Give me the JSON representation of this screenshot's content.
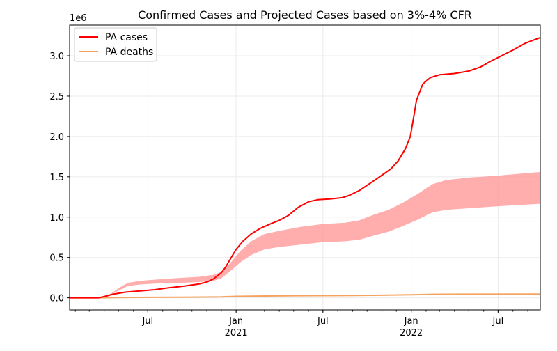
{
  "chart_data": {
    "type": "line",
    "title": "Confirmed Cases and Projected Cases based on 3%-4% CFR",
    "y_multiplier_label": "1e6",
    "xlabel": "",
    "ylabel": "",
    "x_range": [
      "2020-01-20",
      "2022-09-27"
    ],
    "ylim": [
      -150000,
      3380000
    ],
    "y_ticks": [
      0.0,
      0.5,
      1.0,
      1.5,
      2.0,
      2.5,
      3.0
    ],
    "y_tick_labels": [
      "0.0",
      "0.5",
      "1.0",
      "1.5",
      "2.0",
      "2.5",
      "3.0"
    ],
    "x_ticks": [
      {
        "date": "2020-07-01",
        "label": "Jul",
        "sublabel": ""
      },
      {
        "date": "2021-01-01",
        "label": "Jan",
        "sublabel": "2021"
      },
      {
        "date": "2021-07-01",
        "label": "Jul",
        "sublabel": ""
      },
      {
        "date": "2022-01-01",
        "label": "Jan",
        "sublabel": "2022"
      },
      {
        "date": "2022-07-01",
        "label": "Jul",
        "sublabel": ""
      }
    ],
    "grid": true,
    "legend_position": "top-left",
    "series": [
      {
        "name": "PA cases",
        "color": "#ff0000",
        "points": [
          [
            "2020-01-20",
            0
          ],
          [
            "2020-03-01",
            0
          ],
          [
            "2020-03-20",
            0
          ],
          [
            "2020-04-01",
            15000
          ],
          [
            "2020-04-20",
            45000
          ],
          [
            "2020-05-15",
            70000
          ],
          [
            "2020-06-15",
            85000
          ],
          [
            "2020-07-15",
            100000
          ],
          [
            "2020-08-15",
            125000
          ],
          [
            "2020-09-15",
            145000
          ],
          [
            "2020-10-15",
            170000
          ],
          [
            "2020-11-01",
            195000
          ],
          [
            "2020-11-15",
            235000
          ],
          [
            "2020-12-01",
            310000
          ],
          [
            "2020-12-10",
            380000
          ],
          [
            "2020-12-20",
            480000
          ],
          [
            "2021-01-01",
            600000
          ],
          [
            "2021-01-15",
            700000
          ],
          [
            "2021-02-01",
            790000
          ],
          [
            "2021-02-20",
            860000
          ],
          [
            "2021-03-15",
            920000
          ],
          [
            "2021-04-01",
            960000
          ],
          [
            "2021-04-20",
            1020000
          ],
          [
            "2021-05-10",
            1120000
          ],
          [
            "2021-06-01",
            1190000
          ],
          [
            "2021-06-20",
            1215000
          ],
          [
            "2021-07-15",
            1225000
          ],
          [
            "2021-08-10",
            1240000
          ],
          [
            "2021-08-25",
            1270000
          ],
          [
            "2021-09-15",
            1330000
          ],
          [
            "2021-10-15",
            1450000
          ],
          [
            "2021-11-01",
            1520000
          ],
          [
            "2021-11-20",
            1600000
          ],
          [
            "2021-12-05",
            1700000
          ],
          [
            "2021-12-20",
            1850000
          ],
          [
            "2021-12-30",
            2000000
          ],
          [
            "2022-01-05",
            2200000
          ],
          [
            "2022-01-12",
            2450000
          ],
          [
            "2022-01-25",
            2650000
          ],
          [
            "2022-02-10",
            2730000
          ],
          [
            "2022-03-01",
            2765000
          ],
          [
            "2022-04-01",
            2780000
          ],
          [
            "2022-05-01",
            2810000
          ],
          [
            "2022-05-25",
            2860000
          ],
          [
            "2022-06-15",
            2930000
          ],
          [
            "2022-07-05",
            2990000
          ],
          [
            "2022-08-01",
            3070000
          ],
          [
            "2022-08-25",
            3150000
          ],
          [
            "2022-09-15",
            3200000
          ],
          [
            "2022-09-27",
            3225000
          ]
        ]
      },
      {
        "name": "PA deaths",
        "color": "#f4a460",
        "points": [
          [
            "2020-01-20",
            0
          ],
          [
            "2020-03-20",
            0
          ],
          [
            "2020-05-01",
            3000
          ],
          [
            "2020-07-01",
            6500
          ],
          [
            "2020-10-01",
            8500
          ],
          [
            "2020-12-01",
            12000
          ],
          [
            "2021-01-01",
            18000
          ],
          [
            "2021-02-15",
            22000
          ],
          [
            "2021-05-01",
            26000
          ],
          [
            "2021-08-01",
            28000
          ],
          [
            "2021-11-01",
            32000
          ],
          [
            "2022-01-01",
            38000
          ],
          [
            "2022-02-15",
            43000
          ],
          [
            "2022-05-01",
            45000
          ],
          [
            "2022-09-27",
            47000
          ]
        ]
      }
    ],
    "band": {
      "name": "",
      "color": "#ff9999",
      "points": [
        [
          "2020-01-20",
          0,
          0
        ],
        [
          "2020-03-20",
          0,
          0
        ],
        [
          "2020-04-15",
          40000,
          50000
        ],
        [
          "2020-05-01",
          90000,
          120000
        ],
        [
          "2020-05-20",
          145000,
          185000
        ],
        [
          "2020-06-15",
          165000,
          210000
        ],
        [
          "2020-07-15",
          175000,
          225000
        ],
        [
          "2020-09-01",
          185000,
          245000
        ],
        [
          "2020-10-15",
          195000,
          260000
        ],
        [
          "2020-11-15",
          210000,
          285000
        ],
        [
          "2020-12-01",
          240000,
          320000
        ],
        [
          "2020-12-20",
          330000,
          430000
        ],
        [
          "2021-01-10",
          440000,
          580000
        ],
        [
          "2021-02-01",
          530000,
          700000
        ],
        [
          "2021-03-01",
          600000,
          790000
        ],
        [
          "2021-04-01",
          630000,
          830000
        ],
        [
          "2021-05-15",
          660000,
          880000
        ],
        [
          "2021-07-01",
          690000,
          915000
        ],
        [
          "2021-08-15",
          700000,
          930000
        ],
        [
          "2021-09-15",
          720000,
          960000
        ],
        [
          "2021-10-15",
          770000,
          1030000
        ],
        [
          "2021-11-15",
          820000,
          1090000
        ],
        [
          "2021-12-15",
          890000,
          1180000
        ],
        [
          "2022-01-15",
          970000,
          1290000
        ],
        [
          "2022-02-15",
          1060000,
          1410000
        ],
        [
          "2022-03-15",
          1090000,
          1460000
        ],
        [
          "2022-05-01",
          1110000,
          1490000
        ],
        [
          "2022-07-01",
          1135000,
          1515000
        ],
        [
          "2022-09-27",
          1165000,
          1560000
        ]
      ]
    }
  }
}
